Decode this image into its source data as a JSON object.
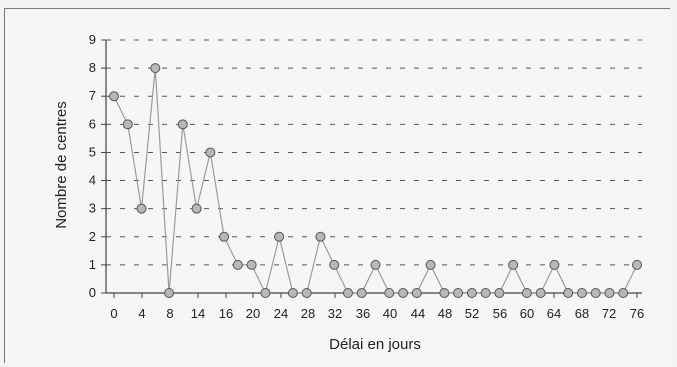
{
  "chart_data": {
    "type": "line",
    "xlabel": "Délai en jours",
    "ylabel": "Nombre de centres",
    "xlim": [
      0,
      76
    ],
    "ylim": [
      0,
      9
    ],
    "x_ticks": [
      0,
      4,
      8,
      14,
      16,
      20,
      24,
      28,
      32,
      36,
      40,
      44,
      48,
      52,
      56,
      60,
      64,
      68,
      72,
      76
    ],
    "x_tick_labels": [
      "0",
      "4",
      "8",
      "14",
      "16",
      "20",
      "24",
      "28",
      "32",
      "36",
      "40",
      "44",
      "48",
      "52",
      "56",
      "60",
      "64",
      "68",
      "72",
      "76"
    ],
    "y_ticks": [
      0,
      1,
      2,
      3,
      4,
      5,
      6,
      7,
      8,
      9
    ],
    "y_tick_labels": [
      "0",
      "1",
      "2",
      "3",
      "4",
      "5",
      "6",
      "7",
      "8",
      "9"
    ],
    "grid": "horizontal dashed",
    "marker_color": "#b8b8b8",
    "line_color": "#9a9a9a",
    "series": [
      {
        "x": [
          0,
          2,
          4,
          6,
          8,
          10,
          12,
          14,
          16,
          18,
          20,
          22,
          24,
          26,
          28,
          30,
          32,
          34,
          36,
          38,
          40,
          42,
          44,
          46,
          48,
          50,
          52,
          54,
          56,
          58,
          60,
          62,
          64,
          66,
          68,
          70,
          72,
          74,
          76
        ],
        "values": [
          7,
          6,
          3,
          8,
          0,
          6,
          3,
          5,
          2,
          1,
          1,
          0,
          2,
          0,
          0,
          2,
          1,
          0,
          0,
          1,
          0,
          0,
          0,
          1,
          0,
          0,
          0,
          0,
          0,
          1,
          0,
          0,
          1,
          0,
          0,
          0,
          0,
          0,
          1
        ]
      }
    ]
  }
}
